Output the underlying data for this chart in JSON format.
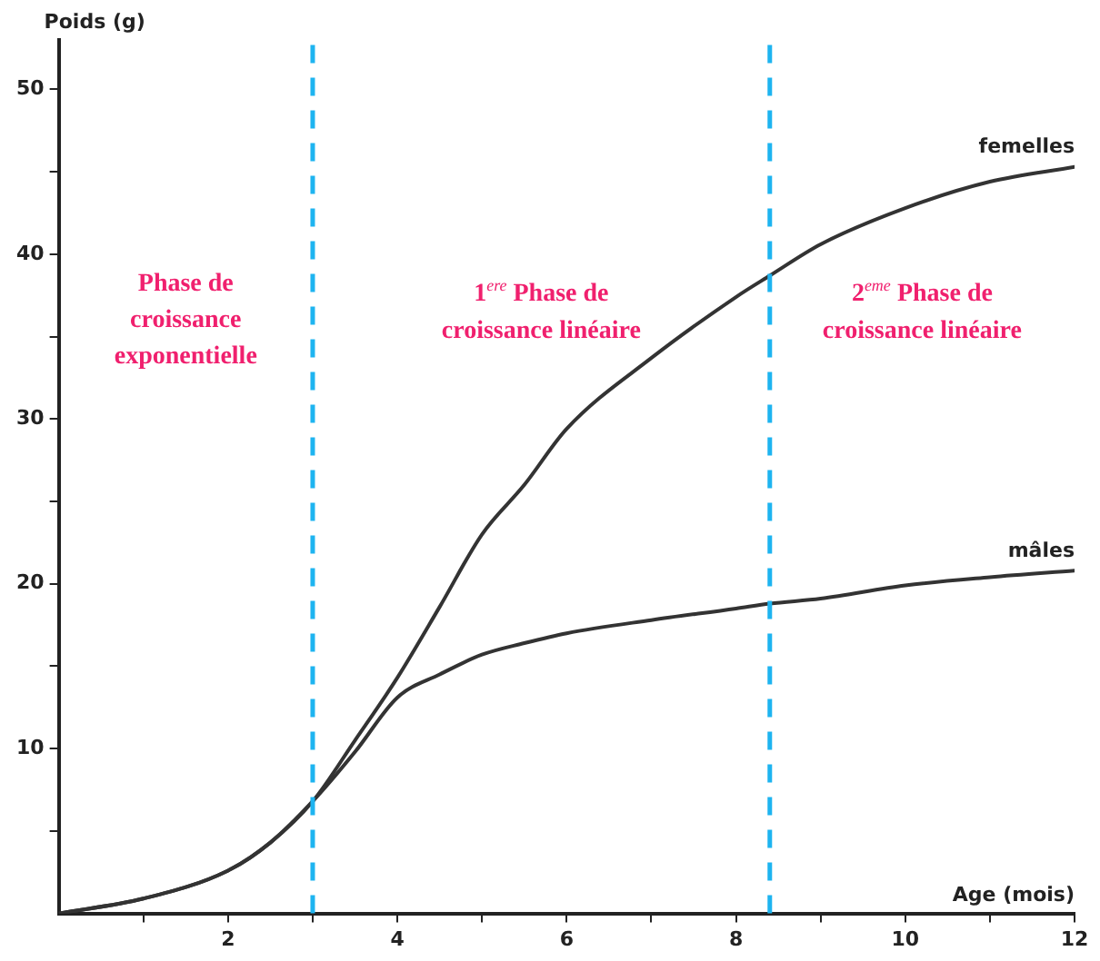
{
  "chart_data": {
    "type": "line",
    "xlabel": "Age (mois)",
    "ylabel": "Poids (g)",
    "x": [
      0,
      1,
      2,
      2.5,
      3,
      3.5,
      4,
      4.5,
      5,
      5.5,
      6,
      7,
      8,
      8.4,
      9,
      10,
      11,
      12
    ],
    "series": [
      {
        "name": "femelles",
        "color": "#333333",
        "values": [
          0,
          0.9,
          2.6,
          4.3,
          6.8,
          10.5,
          14.3,
          18.6,
          23,
          26,
          29.4,
          33.7,
          37.4,
          38.7,
          40.6,
          42.8,
          44.4,
          45.3
        ]
      },
      {
        "name": "mâles",
        "color": "#333333",
        "values": [
          0,
          0.9,
          2.6,
          4.3,
          6.8,
          9.8,
          13.1,
          14.5,
          15.7,
          16.4,
          17,
          17.8,
          18.5,
          18.8,
          19.1,
          19.9,
          20.4,
          20.8
        ]
      }
    ],
    "xlim": [
      0,
      12
    ],
    "ylim": [
      0,
      53
    ],
    "xticks": [
      {
        "value": 1,
        "label": null
      },
      2,
      {
        "value": 3,
        "label": null
      },
      4,
      {
        "value": 5,
        "label": null
      },
      6,
      {
        "value": 7,
        "label": null
      },
      8,
      {
        "value": 9,
        "label": null
      },
      10,
      {
        "value": 11,
        "label": null
      },
      12
    ],
    "yticks": [
      {
        "value": 5,
        "label": null
      },
      10,
      {
        "value": 15,
        "label": null
      },
      20,
      {
        "value": 25,
        "label": null
      },
      30,
      {
        "value": 35,
        "label": null
      },
      40,
      {
        "value": 45,
        "label": null
      },
      50
    ],
    "ref_lines": [
      {
        "axis": "x",
        "value": 3,
        "color": "#1eb4f0",
        "line_style": "dashed"
      },
      {
        "axis": "x",
        "value": 8.4,
        "color": "#1eb4f0",
        "line_style": "dashed"
      }
    ],
    "annotations": [
      "Phase de croissance exponentielle",
      "1$^{ere}$ Phase de croissance linéaire",
      "2$^{eme}$ Phase de croissance linéaire"
    ],
    "grid": false,
    "legend": false,
    "marker": "none",
    "line_style": "solid"
  }
}
